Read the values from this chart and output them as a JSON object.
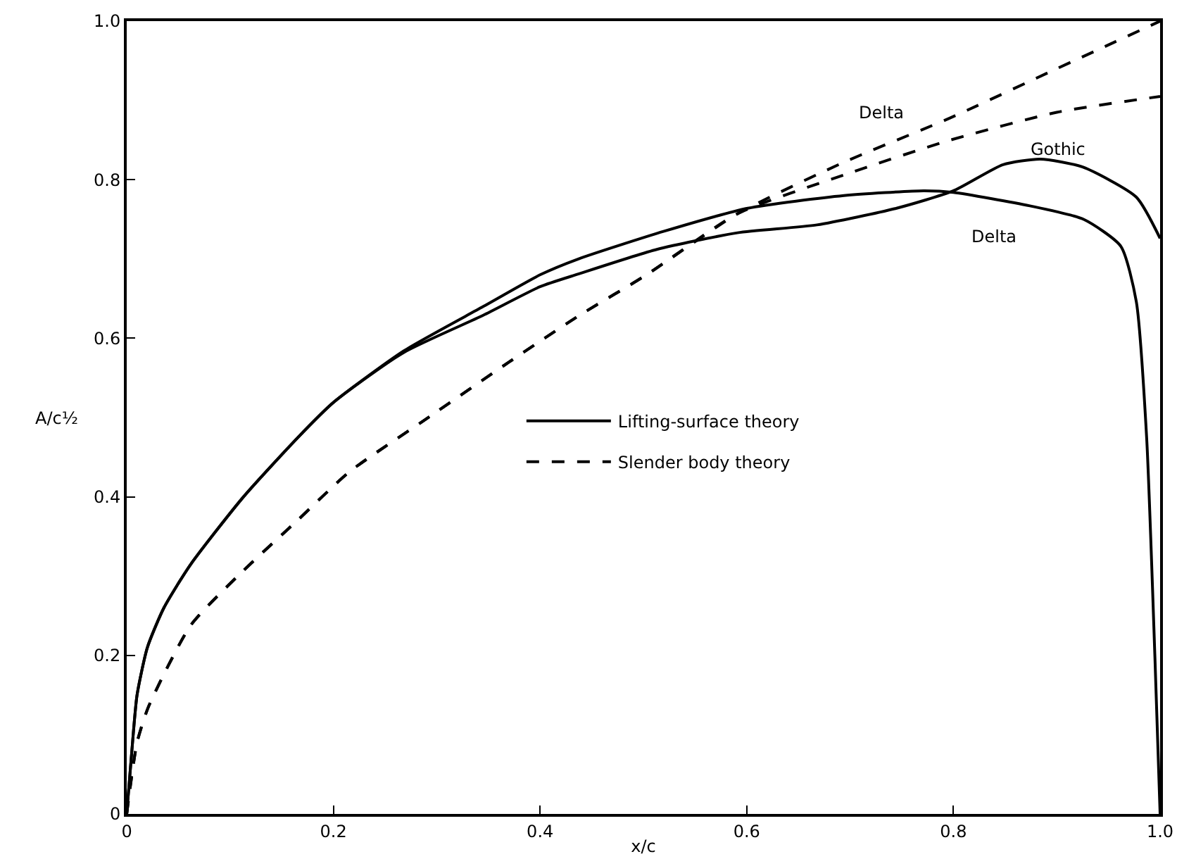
{
  "chart_data": {
    "type": "line",
    "xlabel": "x/c",
    "ylabel": "A/c½",
    "xlim": [
      0,
      1
    ],
    "ylim": [
      0,
      1
    ],
    "xticks": [
      0,
      0.2,
      0.4,
      0.6,
      0.8,
      {
        "value": 1,
        "label": "1.0"
      }
    ],
    "yticks": [
      {
        "value": 0,
        "label": "0"
      },
      0.2,
      0.4,
      0.6,
      0.8,
      {
        "value": 1,
        "label": "1.0"
      }
    ],
    "grid": false,
    "legend": "center",
    "marker": "none",
    "series": [
      {
        "name": "Lifting-surface theory",
        "color": "#000000",
        "line_style": "solid",
        "x": [
          0,
          0.005,
          0.01,
          0.02,
          0.036,
          0.062,
          0.113,
          0.165,
          0.2,
          0.268,
          0.345,
          0.4,
          0.437,
          0.52,
          0.601,
          0.694,
          0.771,
          0.8,
          0.874,
          0.926,
          0.962,
          0.977,
          0.987,
          0.995,
          1.0
        ],
        "values": [
          0,
          0.08,
          0.15,
          0.21,
          0.26,
          0.315,
          0.4,
          0.474,
          0.519,
          0.584,
          0.64,
          0.68,
          0.7,
          0.735,
          0.764,
          0.78,
          0.786,
          0.784,
          0.767,
          0.75,
          0.716,
          0.646,
          0.474,
          0.197,
          0
        ]
      },
      {
        "color": "#000000",
        "line_style": "solid",
        "x": [
          0,
          0.005,
          0.01,
          0.02,
          0.036,
          0.062,
          0.113,
          0.165,
          0.2,
          0.268,
          0.345,
          0.4,
          0.437,
          0.513,
          0.591,
          0.668,
          0.745,
          0.8,
          0.848,
          0.884,
          0.925,
          0.977,
          1.0
        ],
        "values": [
          0,
          0.08,
          0.15,
          0.21,
          0.26,
          0.315,
          0.4,
          0.474,
          0.519,
          0.582,
          0.629,
          0.665,
          0.681,
          0.712,
          0.733,
          0.743,
          0.764,
          0.786,
          0.819,
          0.826,
          0.816,
          0.778,
          0.726
        ]
      },
      {
        "name": "Slender body theory",
        "color": "#000000",
        "line_style": "dashed",
        "x": [
          0,
          0.01,
          0.021,
          0.062,
          0.113,
          0.165,
          0.216,
          0.293,
          0.37,
          0.437,
          0.503,
          0.591,
          0.694,
          0.797,
          0.9,
          1.0
        ],
        "values": [
          0,
          0.09,
          0.135,
          0.238,
          0.307,
          0.37,
          0.432,
          0.501,
          0.57,
          0.628,
          0.68,
          0.757,
          0.822,
          0.878,
          0.94,
          1.0
        ]
      },
      {
        "color": "#000000",
        "line_style": "dashed",
        "x": [
          0,
          0.01,
          0.021,
          0.062,
          0.113,
          0.165,
          0.216,
          0.293,
          0.37,
          0.437,
          0.503,
          0.591,
          0.694,
          0.797,
          0.9,
          1.0
        ],
        "values": [
          0,
          0.09,
          0.135,
          0.238,
          0.307,
          0.37,
          0.432,
          0.501,
          0.57,
          0.628,
          0.68,
          0.757,
          0.806,
          0.85,
          0.885,
          0.905
        ]
      }
    ],
    "annotations": [
      "Delta",
      "Gothic",
      "Delta"
    ]
  }
}
